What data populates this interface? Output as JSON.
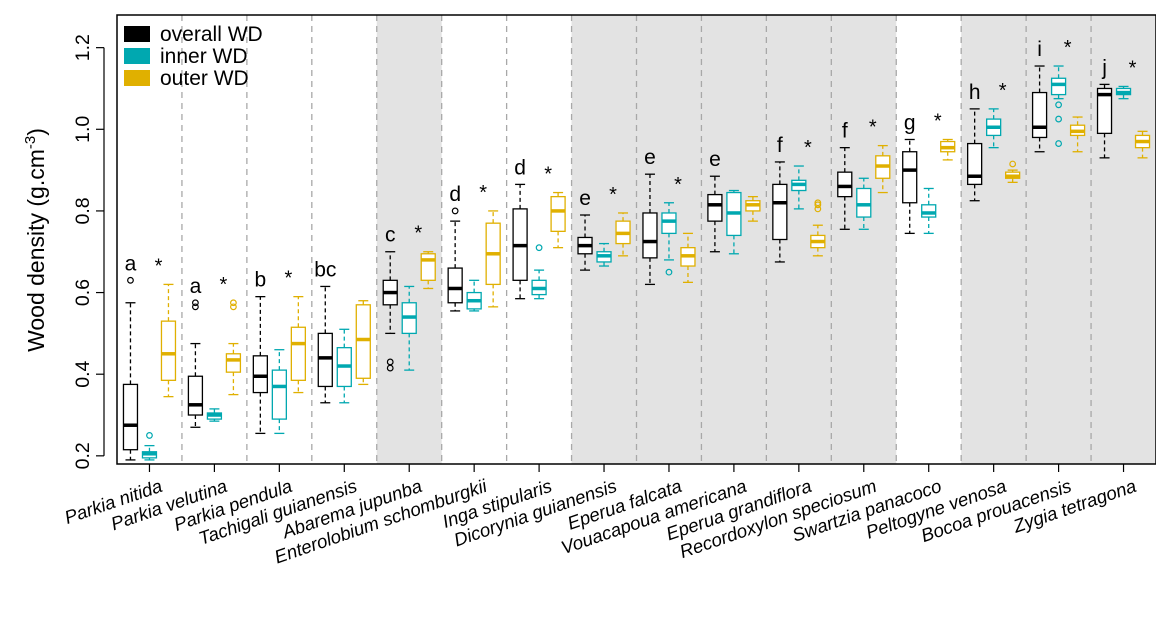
{
  "chart_data": {
    "type": "boxplot",
    "ylabel": "Wood density (g.cm",
    "ylabel_sup": "-3",
    "ylabel_close": ")",
    "ylim": [
      0.18,
      1.28
    ],
    "yticks": [
      0.2,
      0.4,
      0.6,
      0.8,
      1.0,
      1.2
    ],
    "ytick_labels": [
      "0.2",
      "0.4",
      "0.6",
      "0.8",
      "1.0",
      "1.2"
    ],
    "legend_position": "top-left",
    "series": [
      {
        "name": "overall WD",
        "color": "#000000"
      },
      {
        "name": "inner WD",
        "color": "#00A8B0"
      },
      {
        "name": "outer WD",
        "color": "#E0B000"
      }
    ],
    "species": [
      {
        "name": "Parkia nitida",
        "shaded": false,
        "letter": "a",
        "star": "*",
        "boxes": [
          {
            "series": "overall WD",
            "whisker_low": 0.19,
            "q1": 0.215,
            "median": 0.275,
            "q3": 0.375,
            "whisker_high": 0.575,
            "outliers": [
              0.63
            ]
          },
          {
            "series": "inner WD",
            "whisker_low": 0.19,
            "q1": 0.195,
            "median": 0.205,
            "q3": 0.21,
            "whisker_high": 0.225,
            "outliers": [
              0.25
            ]
          },
          {
            "series": "outer WD",
            "whisker_low": 0.345,
            "q1": 0.385,
            "median": 0.45,
            "q3": 0.53,
            "whisker_high": 0.62,
            "outliers": []
          }
        ]
      },
      {
        "name": "Parkia velutina",
        "shaded": false,
        "letter": "a",
        "star": "*",
        "boxes": [
          {
            "series": "overall WD",
            "whisker_low": 0.27,
            "q1": 0.3,
            "median": 0.325,
            "q3": 0.395,
            "whisker_high": 0.475,
            "outliers": [
              0.565,
              0.575
            ]
          },
          {
            "series": "inner WD",
            "whisker_low": 0.285,
            "q1": 0.29,
            "median": 0.3,
            "q3": 0.305,
            "whisker_high": 0.315,
            "outliers": []
          },
          {
            "series": "outer WD",
            "whisker_low": 0.35,
            "q1": 0.405,
            "median": 0.435,
            "q3": 0.45,
            "whisker_high": 0.475,
            "outliers": [
              0.565,
              0.575
            ]
          }
        ]
      },
      {
        "name": "Parkia pendula",
        "shaded": false,
        "letter": "b",
        "star": "*",
        "boxes": [
          {
            "series": "overall WD",
            "whisker_low": 0.255,
            "q1": 0.355,
            "median": 0.395,
            "q3": 0.445,
            "whisker_high": 0.59,
            "outliers": []
          },
          {
            "series": "inner WD",
            "whisker_low": 0.255,
            "q1": 0.29,
            "median": 0.37,
            "q3": 0.41,
            "whisker_high": 0.46,
            "outliers": []
          },
          {
            "series": "outer WD",
            "whisker_low": 0.355,
            "q1": 0.385,
            "median": 0.475,
            "q3": 0.515,
            "whisker_high": 0.59,
            "outliers": []
          }
        ]
      },
      {
        "name": "Tachigali guianensis",
        "shaded": false,
        "letter": "bc",
        "star": "",
        "boxes": [
          {
            "series": "overall WD",
            "whisker_low": 0.33,
            "q1": 0.37,
            "median": 0.44,
            "q3": 0.5,
            "whisker_high": 0.615,
            "outliers": []
          },
          {
            "series": "inner WD",
            "whisker_low": 0.33,
            "q1": 0.37,
            "median": 0.42,
            "q3": 0.465,
            "whisker_high": 0.51,
            "outliers": []
          },
          {
            "series": "outer WD",
            "whisker_low": 0.375,
            "q1": 0.39,
            "median": 0.485,
            "q3": 0.57,
            "whisker_high": 0.58,
            "outliers": []
          }
        ]
      },
      {
        "name": "Abarema jupunba",
        "shaded": true,
        "letter": "c",
        "star": "*",
        "boxes": [
          {
            "series": "overall WD",
            "whisker_low": 0.5,
            "q1": 0.57,
            "median": 0.6,
            "q3": 0.63,
            "whisker_high": 0.7,
            "outliers": [
              0.415,
              0.43
            ]
          },
          {
            "series": "inner WD",
            "whisker_low": 0.41,
            "q1": 0.5,
            "median": 0.54,
            "q3": 0.575,
            "whisker_high": 0.615,
            "outliers": []
          },
          {
            "series": "outer WD",
            "whisker_low": 0.61,
            "q1": 0.63,
            "median": 0.68,
            "q3": 0.695,
            "whisker_high": 0.7,
            "outliers": []
          }
        ]
      },
      {
        "name": "Enterolobium schomburgkii",
        "shaded": false,
        "letter": "d",
        "star": "*",
        "boxes": [
          {
            "series": "overall WD",
            "whisker_low": 0.555,
            "q1": 0.575,
            "median": 0.61,
            "q3": 0.66,
            "whisker_high": 0.775,
            "outliers": [
              0.8
            ]
          },
          {
            "series": "inner WD",
            "whisker_low": 0.555,
            "q1": 0.56,
            "median": 0.58,
            "q3": 0.6,
            "whisker_high": 0.63,
            "outliers": []
          },
          {
            "series": "outer WD",
            "whisker_low": 0.565,
            "q1": 0.62,
            "median": 0.695,
            "q3": 0.77,
            "whisker_high": 0.8,
            "outliers": []
          }
        ]
      },
      {
        "name": "Inga stipularis",
        "shaded": false,
        "letter": "d",
        "star": "*",
        "boxes": [
          {
            "series": "overall WD",
            "whisker_low": 0.585,
            "q1": 0.63,
            "median": 0.715,
            "q3": 0.805,
            "whisker_high": 0.865,
            "outliers": []
          },
          {
            "series": "inner WD",
            "whisker_low": 0.585,
            "q1": 0.595,
            "median": 0.61,
            "q3": 0.63,
            "whisker_high": 0.655,
            "outliers": [
              0.71
            ]
          },
          {
            "series": "outer WD",
            "whisker_low": 0.71,
            "q1": 0.75,
            "median": 0.8,
            "q3": 0.835,
            "whisker_high": 0.845,
            "outliers": []
          }
        ]
      },
      {
        "name": "Dicorynia guianensis",
        "shaded": true,
        "letter": "e",
        "star": "*",
        "boxes": [
          {
            "series": "overall WD",
            "whisker_low": 0.655,
            "q1": 0.695,
            "median": 0.715,
            "q3": 0.735,
            "whisker_high": 0.79,
            "outliers": []
          },
          {
            "series": "inner WD",
            "whisker_low": 0.665,
            "q1": 0.675,
            "median": 0.69,
            "q3": 0.7,
            "whisker_high": 0.72,
            "outliers": []
          },
          {
            "series": "outer WD",
            "whisker_low": 0.69,
            "q1": 0.72,
            "median": 0.745,
            "q3": 0.775,
            "whisker_high": 0.795,
            "outliers": []
          }
        ]
      },
      {
        "name": "Eperua falcata",
        "shaded": true,
        "letter": "e",
        "star": "*",
        "boxes": [
          {
            "series": "overall WD",
            "whisker_low": 0.62,
            "q1": 0.685,
            "median": 0.725,
            "q3": 0.795,
            "whisker_high": 0.89,
            "outliers": []
          },
          {
            "series": "inner WD",
            "whisker_low": 0.68,
            "q1": 0.745,
            "median": 0.775,
            "q3": 0.795,
            "whisker_high": 0.82,
            "outliers": [
              0.65
            ]
          },
          {
            "series": "outer WD",
            "whisker_low": 0.625,
            "q1": 0.665,
            "median": 0.69,
            "q3": 0.71,
            "whisker_high": 0.745,
            "outliers": []
          }
        ]
      },
      {
        "name": "Vouacapoua americana",
        "shaded": true,
        "letter": "e",
        "star": "",
        "boxes": [
          {
            "series": "overall WD",
            "whisker_low": 0.7,
            "q1": 0.775,
            "median": 0.815,
            "q3": 0.84,
            "whisker_high": 0.885,
            "outliers": []
          },
          {
            "series": "inner WD",
            "whisker_low": 0.695,
            "q1": 0.74,
            "median": 0.795,
            "q3": 0.845,
            "whisker_high": 0.85,
            "outliers": []
          },
          {
            "series": "outer WD",
            "whisker_low": 0.775,
            "q1": 0.8,
            "median": 0.815,
            "q3": 0.825,
            "whisker_high": 0.835,
            "outliers": []
          }
        ]
      },
      {
        "name": "Eperua grandiflora",
        "shaded": true,
        "letter": "f",
        "star": "*",
        "boxes": [
          {
            "series": "overall WD",
            "whisker_low": 0.675,
            "q1": 0.73,
            "median": 0.82,
            "q3": 0.865,
            "whisker_high": 0.92,
            "outliers": []
          },
          {
            "series": "inner WD",
            "whisker_low": 0.805,
            "q1": 0.85,
            "median": 0.865,
            "q3": 0.875,
            "whisker_high": 0.91,
            "outliers": []
          },
          {
            "series": "outer WD",
            "whisker_low": 0.69,
            "q1": 0.71,
            "median": 0.725,
            "q3": 0.74,
            "whisker_high": 0.765,
            "outliers": [
              0.805,
              0.815,
              0.82
            ]
          }
        ]
      },
      {
        "name": "Recordoxylon speciosum",
        "shaded": true,
        "letter": "f",
        "star": "*",
        "boxes": [
          {
            "series": "overall WD",
            "whisker_low": 0.755,
            "q1": 0.835,
            "median": 0.86,
            "q3": 0.895,
            "whisker_high": 0.955,
            "outliers": []
          },
          {
            "series": "inner WD",
            "whisker_low": 0.755,
            "q1": 0.785,
            "median": 0.815,
            "q3": 0.855,
            "whisker_high": 0.88,
            "outliers": []
          },
          {
            "series": "outer WD",
            "whisker_low": 0.845,
            "q1": 0.88,
            "median": 0.91,
            "q3": 0.935,
            "whisker_high": 0.96,
            "outliers": []
          }
        ]
      },
      {
        "name": "Swartzia panacoco",
        "shaded": false,
        "letter": "g",
        "star": "*",
        "boxes": [
          {
            "series": "overall WD",
            "whisker_low": 0.745,
            "q1": 0.82,
            "median": 0.9,
            "q3": 0.945,
            "whisker_high": 0.975,
            "outliers": []
          },
          {
            "series": "inner WD",
            "whisker_low": 0.745,
            "q1": 0.785,
            "median": 0.795,
            "q3": 0.815,
            "whisker_high": 0.855,
            "outliers": []
          },
          {
            "series": "outer WD",
            "whisker_low": 0.925,
            "q1": 0.945,
            "median": 0.955,
            "q3": 0.97,
            "whisker_high": 0.975,
            "outliers": []
          }
        ]
      },
      {
        "name": "Peltogyne venosa",
        "shaded": true,
        "letter": "h",
        "star": "*",
        "boxes": [
          {
            "series": "overall WD",
            "whisker_low": 0.825,
            "q1": 0.865,
            "median": 0.885,
            "q3": 0.965,
            "whisker_high": 1.05,
            "outliers": []
          },
          {
            "series": "inner WD",
            "whisker_low": 0.955,
            "q1": 0.985,
            "median": 1.005,
            "q3": 1.025,
            "whisker_high": 1.05,
            "outliers": []
          },
          {
            "series": "outer WD",
            "whisker_low": 0.87,
            "q1": 0.88,
            "median": 0.885,
            "q3": 0.895,
            "whisker_high": 0.9,
            "outliers": [
              0.915
            ]
          }
        ]
      },
      {
        "name": "Bocoa prouacensis",
        "shaded": true,
        "letter": "i",
        "star": "*",
        "boxes": [
          {
            "series": "overall WD",
            "whisker_low": 0.945,
            "q1": 0.98,
            "median": 1.005,
            "q3": 1.09,
            "whisker_high": 1.155,
            "outliers": []
          },
          {
            "series": "inner WD",
            "whisker_low": 1.075,
            "q1": 1.085,
            "median": 1.11,
            "q3": 1.125,
            "whisker_high": 1.155,
            "outliers": [
              0.965,
              1.025,
              1.06
            ]
          },
          {
            "series": "outer WD",
            "whisker_low": 0.945,
            "q1": 0.985,
            "median": 0.995,
            "q3": 1.01,
            "whisker_high": 1.03,
            "outliers": []
          }
        ]
      },
      {
        "name": "Zygia tetragona",
        "shaded": true,
        "letter": "j",
        "star": "*",
        "boxes": [
          {
            "series": "overall WD",
            "whisker_low": 0.93,
            "q1": 0.99,
            "median": 1.085,
            "q3": 1.1,
            "whisker_high": 1.11,
            "outliers": []
          },
          {
            "series": "inner WD",
            "whisker_low": 1.075,
            "q1": 1.085,
            "median": 1.09,
            "q3": 1.1,
            "whisker_high": 1.105,
            "outliers": []
          },
          {
            "series": "outer WD",
            "whisker_low": 0.93,
            "q1": 0.955,
            "median": 0.97,
            "q3": 0.985,
            "whisker_high": 0.995,
            "outliers": []
          }
        ]
      }
    ]
  }
}
